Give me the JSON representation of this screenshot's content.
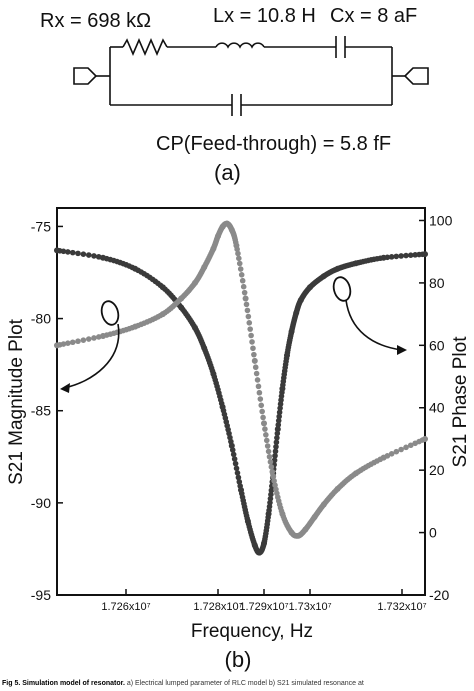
{
  "circuit": {
    "rx_label": "Rx = 698 kΩ",
    "lx_label": "Lx = 10.8 H",
    "cx_label": "Cx = 8 aF",
    "cp_label": "CP(Feed-through) = 5.8 fF",
    "panel_label": "(a)"
  },
  "caption": {
    "lead": "Fig 5. Simulation model of resonator.",
    "text": " a) Electrical lumped parameter of RLC model b) S21 simulated resonance at"
  },
  "chart_data": {
    "type": "line",
    "panel_label": "(b)",
    "xlabel": "Frequency, Hz",
    "ylabel_left": "S21 Magnitude Plot",
    "ylabel_right": "S21 Phase Plot",
    "xlim": [
      17245000,
      17325000
    ],
    "ylim_left": [
      -95,
      -74
    ],
    "ylim_right": [
      -20,
      104
    ],
    "x_ticks": [
      17260000,
      17280000,
      17290000,
      17300000,
      17320000
    ],
    "x_tick_labels": [
      "1.726x10⁷",
      "1.728x10⁷",
      "1.729x10⁷",
      "1.73x10⁷",
      "1.732x10⁷"
    ],
    "y_ticks_left": [
      -95,
      -90,
      -85,
      -80,
      -75
    ],
    "y_ticks_right": [
      -20,
      0,
      20,
      40,
      60,
      80,
      100
    ],
    "grid": false,
    "series": [
      {
        "axis": "left",
        "color": "#3a3a3a",
        "x": [
          17245000,
          17255000,
          17262000,
          17268000,
          17272000,
          17275000,
          17277000,
          17279000,
          17281000,
          17283000,
          17285000,
          17286500,
          17288000,
          17289000,
          17290000,
          17291000,
          17292000,
          17293000,
          17294000,
          17295000,
          17296000,
          17297000,
          17298000,
          17300000,
          17303000,
          17306000,
          17310000,
          17316000,
          17325000
        ],
        "values": [
          -76.3,
          -76.7,
          -77.3,
          -78.3,
          -79.4,
          -80.5,
          -81.6,
          -83.0,
          -84.8,
          -86.9,
          -89.3,
          -91.0,
          -92.3,
          -92.7,
          -92.2,
          -90.6,
          -88.4,
          -86.0,
          -83.8,
          -82.0,
          -80.7,
          -79.7,
          -79.0,
          -78.3,
          -77.7,
          -77.3,
          -77.0,
          -76.7,
          -76.5
        ]
      },
      {
        "axis": "right",
        "color": "#8a8a8a",
        "x": [
          17245000,
          17255000,
          17262000,
          17268000,
          17272000,
          17275000,
          17277000,
          17279000,
          17280000,
          17281000,
          17282000,
          17283000,
          17284000,
          17286000,
          17288000,
          17290000,
          17292000,
          17294000,
          17296000,
          17297500,
          17299000,
          17301000,
          17303000,
          17306000,
          17310000,
          17316000,
          17325000
        ],
        "values": [
          60,
          63,
          66,
          70,
          75,
          80,
          85,
          91,
          95,
          98,
          99,
          97,
          92,
          75,
          55,
          35,
          18,
          6,
          0,
          -1,
          1,
          5,
          9,
          14,
          19,
          24,
          30
        ]
      }
    ],
    "annotations": [
      {
        "type": "ellipse-arrow",
        "points_to": "left axis",
        "near_x": 17261000
      },
      {
        "type": "ellipse-arrow",
        "points_to": "right axis",
        "near_x": 17301000
      }
    ]
  }
}
